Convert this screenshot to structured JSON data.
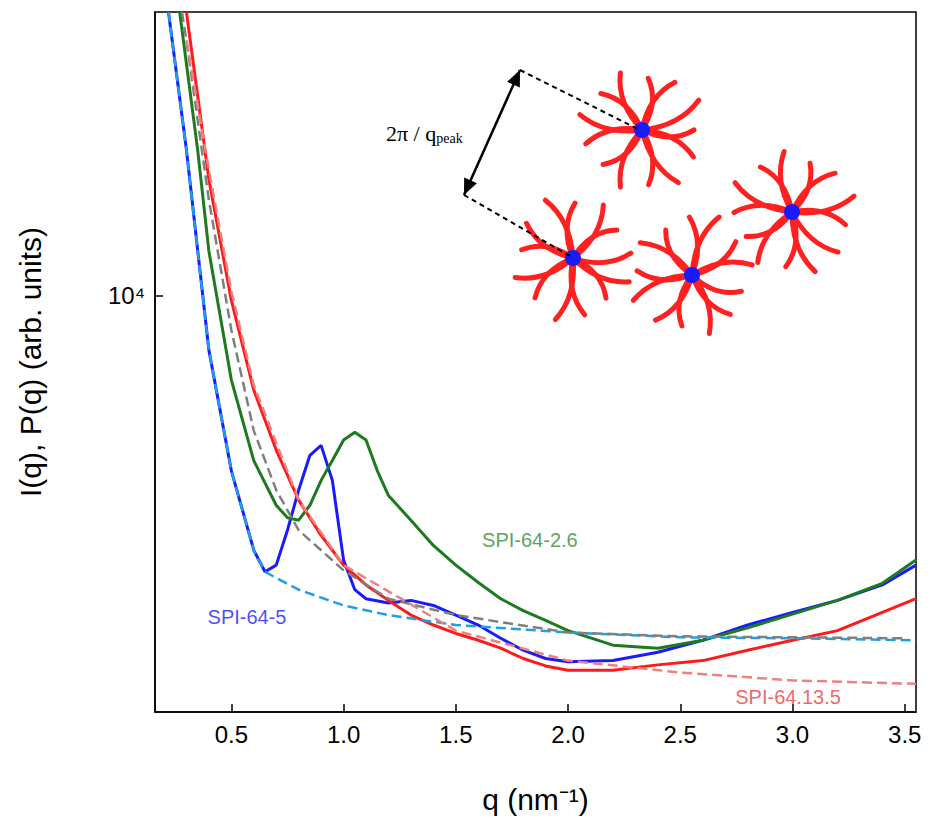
{
  "chart_data": {
    "type": "line",
    "xlabel": "q (nm⁻¹)",
    "ylabel": "I(q), P(q) (arb. units)",
    "log": "y",
    "grid": false,
    "xlim": [
      0.16,
      3.55
    ],
    "xticks": [
      0.5,
      {
        "value": 1,
        "label": "1.0"
      },
      1.5,
      {
        "value": 2,
        "label": "2.0"
      },
      2.5,
      {
        "value": 3,
        "label": "3.0"
      },
      3.5
    ],
    "ylim": [
      2000,
      30000
    ],
    "yticks": [
      {
        "value": 10000,
        "label": "10⁴"
      }
    ],
    "series": [
      {
        "color": "#1a1aff",
        "line_style": "solid",
        "x": [
          0.22,
          0.3,
          0.4,
          0.5,
          0.6,
          0.65,
          0.7,
          0.75,
          0.8,
          0.85,
          0.9,
          0.95,
          1.0,
          1.05,
          1.1,
          1.2,
          1.3,
          1.4,
          1.5,
          1.6,
          1.7,
          1.8,
          1.9,
          2.0,
          2.2,
          2.4,
          2.6,
          2.8,
          3.0,
          3.2,
          3.4,
          3.55
        ],
        "values": [
          30000,
          17600,
          8110,
          5090,
          3740,
          3440,
          3530,
          4040,
          4720,
          5400,
          5610,
          4900,
          3600,
          3210,
          3100,
          3050,
          3080,
          3020,
          2910,
          2800,
          2660,
          2540,
          2460,
          2430,
          2440,
          2520,
          2640,
          2800,
          2940,
          3080,
          3270,
          3530
        ]
      },
      {
        "color": "#1e7a1e",
        "line_style": "solid",
        "x": [
          0.27,
          0.35,
          0.4,
          0.5,
          0.6,
          0.7,
          0.75,
          0.8,
          0.85,
          0.9,
          0.95,
          1.0,
          1.05,
          1.1,
          1.15,
          1.2,
          1.3,
          1.4,
          1.5,
          1.6,
          1.7,
          1.8,
          1.9,
          2.0,
          2.2,
          2.4,
          2.6,
          2.8,
          3.0,
          3.2,
          3.4,
          3.55
        ],
        "values": [
          30000,
          17600,
          11900,
          7230,
          5290,
          4450,
          4240,
          4200,
          4450,
          4900,
          5290,
          5730,
          5900,
          5730,
          5090,
          4620,
          4200,
          3810,
          3530,
          3300,
          3100,
          2960,
          2850,
          2740,
          2590,
          2560,
          2640,
          2770,
          2920,
          3080,
          3290,
          3600
        ]
      },
      {
        "color": "#ff1a1a",
        "line_style": "solid",
        "x": [
          0.3,
          0.4,
          0.5,
          0.6,
          0.7,
          0.8,
          0.9,
          1.0,
          1.1,
          1.2,
          1.3,
          1.4,
          1.5,
          1.6,
          1.7,
          1.8,
          1.9,
          2.0,
          2.2,
          2.4,
          2.6,
          2.8,
          3.0,
          3.2,
          3.4,
          3.55
        ],
        "values": [
          30000,
          15700,
          9840,
          6950,
          5510,
          4540,
          3960,
          3530,
          3270,
          3080,
          2910,
          2800,
          2710,
          2640,
          2560,
          2460,
          2390,
          2350,
          2350,
          2400,
          2440,
          2540,
          2640,
          2740,
          2940,
          3100
        ]
      },
      {
        "color": "#1ea0e6",
        "line_style": "dashed",
        "x": [
          0.22,
          0.3,
          0.4,
          0.5,
          0.6,
          0.65,
          0.7,
          0.8,
          1.0,
          1.2,
          1.5,
          2.0,
          2.5,
          3.0,
          3.55
        ],
        "values": [
          30000,
          17600,
          8110,
          5090,
          3740,
          3440,
          3360,
          3210,
          3020,
          2910,
          2800,
          2720,
          2670,
          2660,
          2640
        ]
      },
      {
        "color": "#7f7f7f",
        "line_style": "dashed",
        "x": [
          0.28,
          0.3,
          0.4,
          0.5,
          0.6,
          0.7,
          0.8,
          1.0,
          1.2,
          1.5,
          2.0,
          2.5,
          3.0,
          3.5
        ],
        "values": [
          30000,
          26900,
          14500,
          8770,
          5940,
          4720,
          4040,
          3460,
          3100,
          2910,
          2720,
          2680,
          2670,
          2660
        ]
      },
      {
        "color": "#f08080",
        "line_style": "dashed",
        "x": [
          0.3,
          0.4,
          0.5,
          0.6,
          0.8,
          1.0,
          1.5,
          2.0,
          2.5,
          3.0,
          3.55
        ],
        "values": [
          26900,
          16300,
          10200,
          7080,
          4540,
          3530,
          2740,
          2440,
          2330,
          2260,
          2230
        ]
      }
    ],
    "annotations": [
      {
        "text": "SPI-64-2.6",
        "x": 1.83,
        "y": 3890,
        "color": "#2e8b2e"
      },
      {
        "text": "SPI-64-5",
        "x": 0.57,
        "y": 2890,
        "color": "#1a1aff"
      },
      {
        "text": "SPI-64.13.5",
        "x": 2.98,
        "y": 2120,
        "color": "#e8403e"
      }
    ],
    "inset": {
      "text": "2π / q",
      "subscript": "peak"
    }
  }
}
